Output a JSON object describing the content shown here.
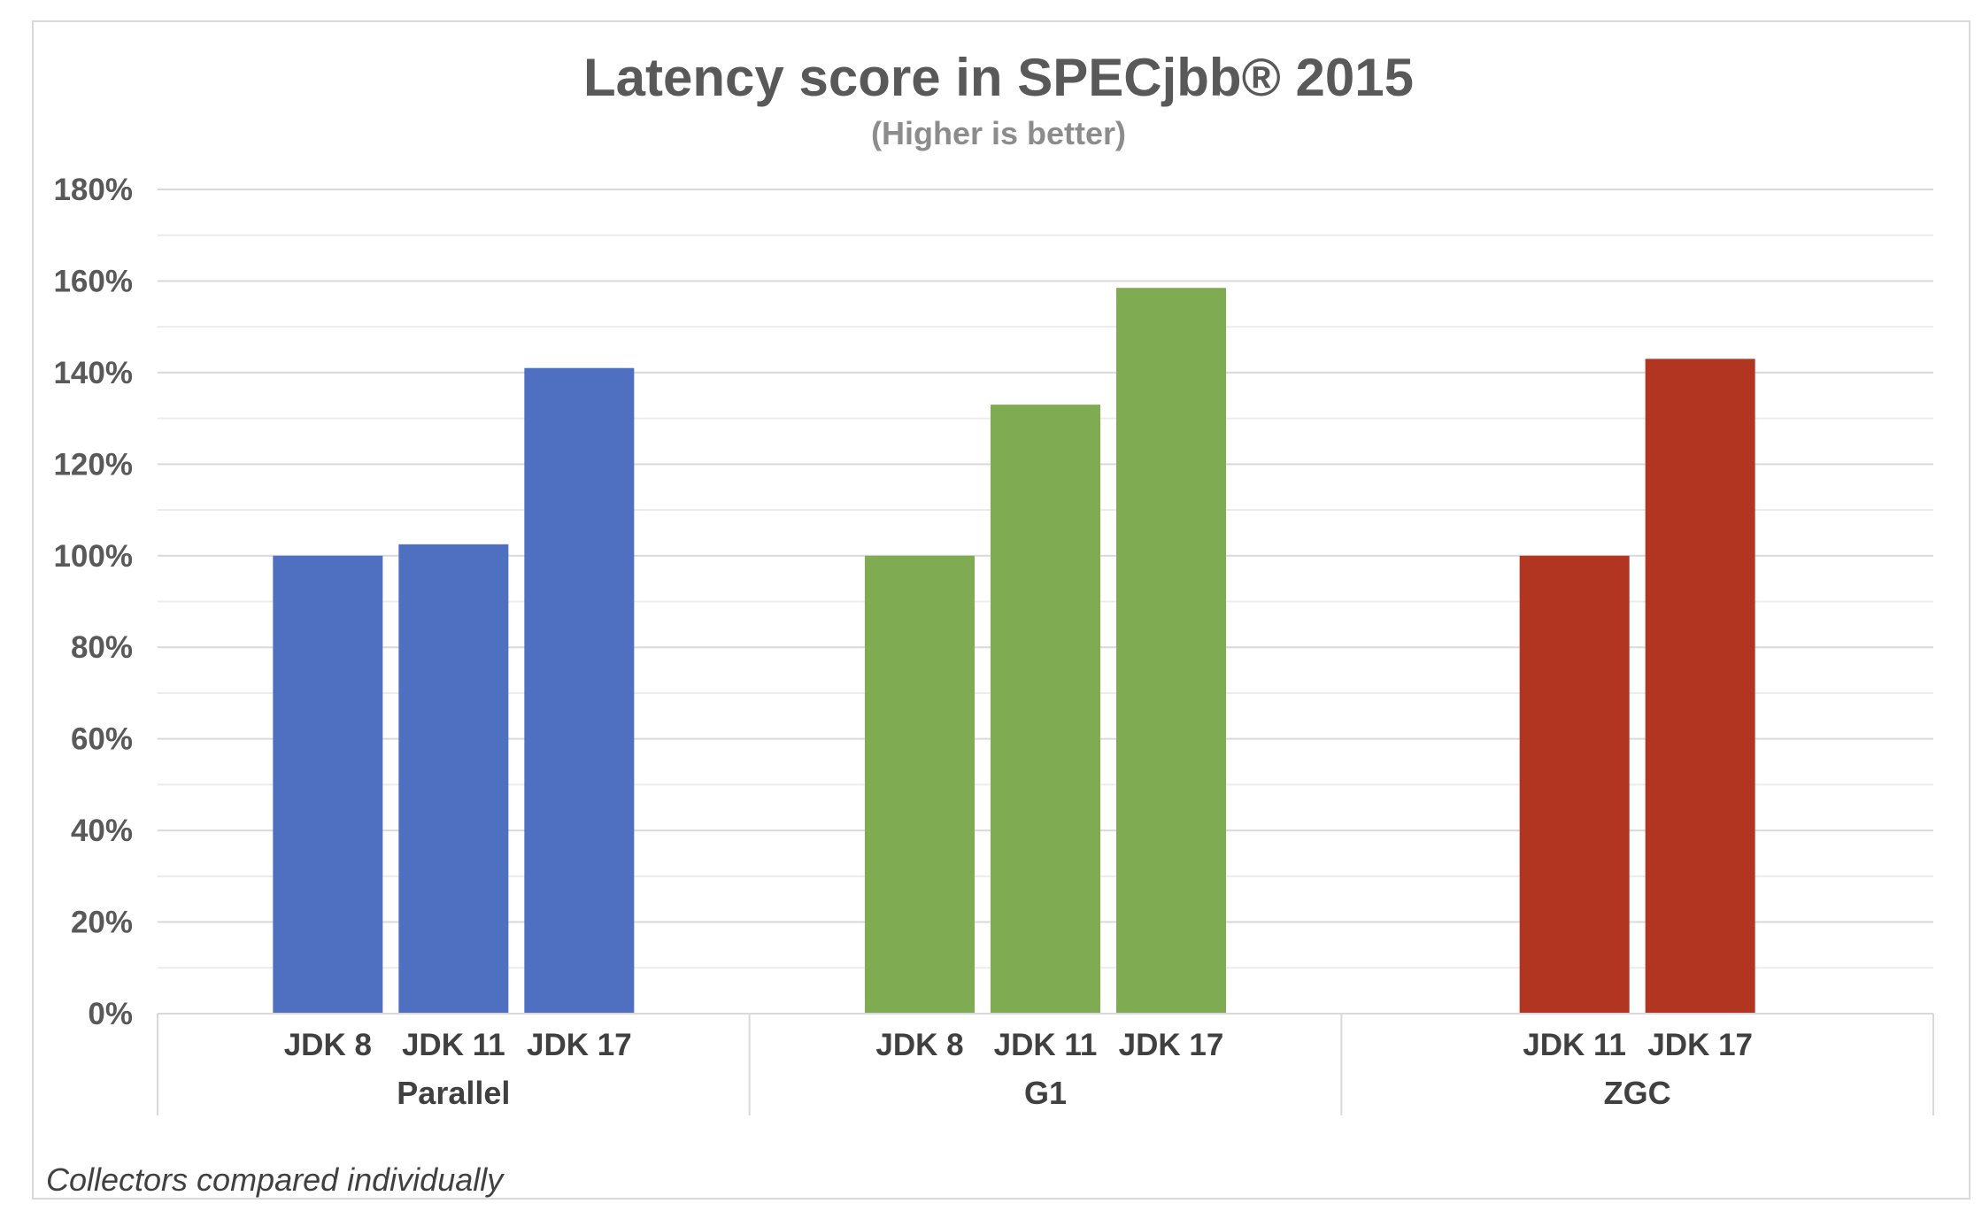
{
  "chart_data": {
    "type": "bar",
    "title": "Latency score in SPECjbb® 2015",
    "subtitle": "(Higher is better)",
    "ylim": [
      0,
      180
    ],
    "y_ticks": [
      "0%",
      "20%",
      "40%",
      "60%",
      "80%",
      "100%",
      "120%",
      "140%",
      "160%",
      "180%"
    ],
    "grid": true,
    "footnote": "Collectors compared individually",
    "groups": [
      {
        "name": "Parallel",
        "color": "#4f6fc0",
        "bars": [
          {
            "label": "JDK 8",
            "value": 100
          },
          {
            "label": "JDK 11",
            "value": 102.5
          },
          {
            "label": "JDK 17",
            "value": 141
          }
        ]
      },
      {
        "name": "G1",
        "color": "#7fac52",
        "bars": [
          {
            "label": "JDK 8",
            "value": 100
          },
          {
            "label": "JDK 11",
            "value": 133
          },
          {
            "label": "JDK 17",
            "value": 158.5
          }
        ]
      },
      {
        "name": "ZGC",
        "color": "#b23522",
        "bars": [
          {
            "label": "JDK 11",
            "value": 100
          },
          {
            "label": "JDK 17",
            "value": 143
          }
        ]
      }
    ]
  }
}
